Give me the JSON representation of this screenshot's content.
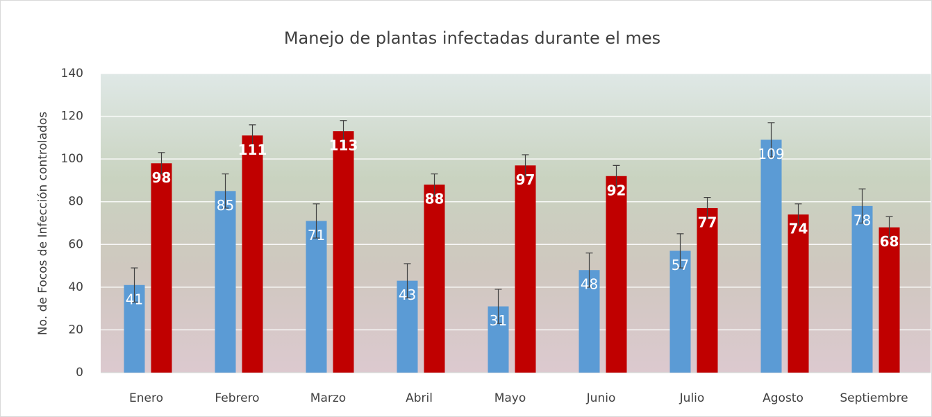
{
  "chart_data": {
    "type": "bar",
    "title": "Manejo de plantas infectadas durante el mes",
    "y_label": "No. de Focos de Infección controlados",
    "categories": [
      "Enero",
      "Febrero",
      "Marzo",
      "Abril",
      "Mayo",
      "Junio",
      "Julio",
      "Agosto",
      "Septiembre"
    ],
    "series": [
      {
        "color": "#5b9bd5",
        "values": [
          41,
          85,
          71,
          43,
          31,
          48,
          57,
          109,
          78
        ],
        "errors": [
          8,
          8,
          8,
          8,
          8,
          8,
          8,
          8,
          8
        ]
      },
      {
        "color": "#c00000",
        "values": [
          98,
          111,
          113,
          88,
          97,
          92,
          77,
          74,
          68
        ],
        "errors": [
          5,
          5,
          5,
          5,
          5,
          5,
          5,
          5,
          5
        ]
      }
    ],
    "ylim": [
      0,
      140
    ],
    "yticks": [
      0,
      20,
      40,
      60,
      80,
      100,
      120,
      140
    ],
    "grid": true
  }
}
